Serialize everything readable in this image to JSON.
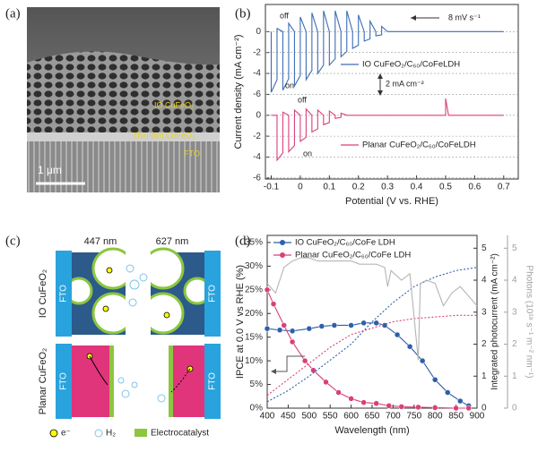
{
  "image_a": {
    "panel_label": "(a)",
    "labels": [
      "IO CuFeO₂",
      "Thin-film CuFeO₂",
      "FTO"
    ],
    "scale_bar": "1 μm"
  },
  "diagram_c": {
    "panel_label": "(c)",
    "columns": [
      "447 nm",
      "627 nm"
    ],
    "rows": [
      "IO CuFeO₂",
      "Planar CuFeO₂"
    ],
    "electrode_label": "FTO",
    "legend": [
      "e⁻",
      "H₂",
      "Electrocatalyst"
    ]
  },
  "chart_data": [
    {
      "type": "line",
      "panel_label": "(b)",
      "x_label": "Potential (V vs. RHE)",
      "y_label": "Current density (mA cm⁻²)",
      "xlim": [
        -0.12,
        0.75
      ],
      "xticks": [
        -0.1,
        0,
        0.1,
        0.2,
        0.3,
        0.4,
        0.5,
        0.6,
        0.7
      ],
      "ylim": [
        -14.1,
        2.6
      ],
      "yticks": [
        0,
        -2,
        -4,
        -6
      ],
      "y2lim": [
        -6.1,
        10.6
      ],
      "y2ticks": [
        0,
        -2,
        -4,
        -6
      ],
      "grid": true,
      "annotations": [
        "off",
        "on",
        "off",
        "on",
        "8 mV s⁻¹",
        "2 mA cm⁻²"
      ],
      "series": [
        {
          "name": "IO CuFeO₂/C₆₀/CoFeLDH",
          "color": "#3d6db5",
          "axis": "y",
          "x": [
            -0.1,
            -0.1,
            -0.08,
            -0.08,
            -0.06,
            -0.06,
            -0.04,
            -0.04,
            -0.02,
            -0.02,
            0,
            0,
            0.02,
            0.02,
            0.04,
            0.04,
            0.06,
            0.06,
            0.08,
            0.08,
            0.1,
            0.1,
            0.12,
            0.12,
            0.14,
            0.14,
            0.16,
            0.16,
            0.18,
            0.18,
            0.2,
            0.2,
            0.22,
            0.22,
            0.24,
            0.24,
            0.26,
            0.26,
            0.28,
            0.28,
            0.3,
            0.7
          ],
          "values": [
            0,
            -5.8,
            -4.6,
            0.3,
            0,
            -5.6,
            -4.5,
            0.8,
            0,
            -5.2,
            -4.2,
            1.4,
            0,
            -4.6,
            -3.7,
            1.8,
            0,
            -4,
            -3.2,
            2,
            0,
            -3.2,
            -2.6,
            2,
            0,
            -2.4,
            -1.9,
            2,
            0,
            -1.6,
            -1.3,
            1.6,
            0,
            -0.9,
            -0.7,
            1,
            0,
            -0.4,
            -0.3,
            0.5,
            0,
            0
          ]
        },
        {
          "name": "Planar CuFeO₂/C₆₀/CoFeLDH",
          "color": "#d9407a",
          "axis": "y2",
          "x": [
            -0.1,
            -0.08,
            -0.08,
            -0.06,
            -0.06,
            -0.04,
            -0.04,
            -0.02,
            -0.02,
            0,
            0,
            0.02,
            0.02,
            0.04,
            0.04,
            0.06,
            0.06,
            0.08,
            0.08,
            0.1,
            0.1,
            0.12,
            0.12,
            0.14,
            0.14,
            0.16,
            0.5,
            0.5,
            0.51,
            0.7
          ],
          "values": [
            0,
            0,
            -4.3,
            -3.6,
            0.3,
            0,
            -3.5,
            -2.9,
            0.5,
            0,
            -2.5,
            -2.1,
            0.6,
            0,
            -1.6,
            -1.3,
            0.5,
            0,
            -0.9,
            -0.7,
            0.4,
            0,
            -0.3,
            -0.2,
            0.2,
            0,
            0,
            1.6,
            0,
            0
          ]
        }
      ]
    },
    {
      "type": "line",
      "panel_label": "(d)",
      "x_label": "Wavelength (nm)",
      "y_label": "IPCE at 0.0 V vs RHE (%)",
      "y2_label": "Integrated photocurrent (mA cm⁻²)",
      "y3_label": "Photons (10¹⁸ s⁻¹ m⁻² nm⁻¹)",
      "xlim": [
        400,
        900
      ],
      "xticks": [
        400,
        450,
        500,
        550,
        600,
        650,
        700,
        750,
        800,
        850,
        900
      ],
      "ylim": [
        0,
        36.5
      ],
      "yticks": [
        {
          "value": 0,
          "label": "0%"
        },
        {
          "value": 5,
          "label": "5%"
        },
        {
          "value": 10,
          "label": "10%"
        },
        {
          "value": 15,
          "label": "15%"
        },
        {
          "value": 20,
          "label": "20%"
        },
        {
          "value": 25,
          "label": "25%"
        },
        {
          "value": 30,
          "label": "30%"
        },
        {
          "value": 35,
          "label": "35%"
        }
      ],
      "y2lim": [
        0,
        5.4
      ],
      "y2ticks": [
        0,
        1,
        2,
        3,
        4,
        5
      ],
      "y3lim": [
        0,
        5.4
      ],
      "y3ticks": [
        0,
        1,
        2,
        3,
        4,
        5
      ],
      "y3_color": "#a0a0a0",
      "grid": false,
      "series": [
        {
          "name": "IO CuFeO₂/C₆₀/CoFe LDH",
          "color": "#2f5fa8",
          "axis": "y",
          "markers": true,
          "x": [
            400,
            430,
            460,
            500,
            530,
            560,
            600,
            630,
            660,
            680,
            710,
            740,
            770,
            800,
            830,
            860,
            880
          ],
          "values": [
            16.8,
            16.5,
            16.3,
            16.8,
            17.3,
            17.5,
            17.5,
            18,
            18,
            17.5,
            15.5,
            13,
            10,
            6,
            3.3,
            1.5,
            0.5
          ]
        },
        {
          "name": "Planar CuFeO₂/C₆₀/CoFe LDH",
          "color": "#d9407a",
          "axis": "y",
          "markers": true,
          "x": [
            400,
            415,
            440,
            460,
            490,
            510,
            540,
            570,
            600,
            630,
            660,
            690,
            720,
            760,
            800,
            850,
            880
          ],
          "values": [
            25,
            22,
            17.5,
            14,
            10,
            8,
            5.5,
            3.3,
            2,
            1.2,
            1,
            0.5,
            0.3,
            0.2,
            0.1,
            0,
            0
          ]
        },
        {
          "color": "#2f5fa8",
          "axis": "y2",
          "dash": true,
          "x": [
            400,
            450,
            500,
            550,
            600,
            650,
            700,
            750,
            800,
            850,
            900
          ],
          "values": [
            0.2,
            0.55,
            1.0,
            1.5,
            2.0,
            2.7,
            3.3,
            3.8,
            4.1,
            4.3,
            4.4
          ]
        },
        {
          "color": "#d9407a",
          "axis": "y2",
          "dash": true,
          "x": [
            400,
            450,
            500,
            550,
            600,
            650,
            700,
            750,
            800,
            850,
            900
          ],
          "values": [
            0.4,
            0.9,
            1.4,
            1.9,
            2.3,
            2.5,
            2.7,
            2.8,
            2.85,
            2.9,
            2.9
          ]
        },
        {
          "color": "#b5b5b5",
          "axis": "y3",
          "x": [
            400,
            420,
            440,
            460,
            480,
            500,
            520,
            540,
            560,
            580,
            600,
            620,
            640,
            660,
            680,
            687,
            695,
            720,
            740,
            760,
            765,
            780,
            800,
            820,
            840,
            860,
            880,
            900
          ],
          "values": [
            3.9,
            3.6,
            4.4,
            4.6,
            4.7,
            4.7,
            4.6,
            4.6,
            4.6,
            4.6,
            4.6,
            4.5,
            4.5,
            4.5,
            4.4,
            3.8,
            4.3,
            4.0,
            4.2,
            1.5,
            3.9,
            4.0,
            3.9,
            3.2,
            3.6,
            3.8,
            3.5,
            3.2
          ]
        }
      ]
    }
  ]
}
